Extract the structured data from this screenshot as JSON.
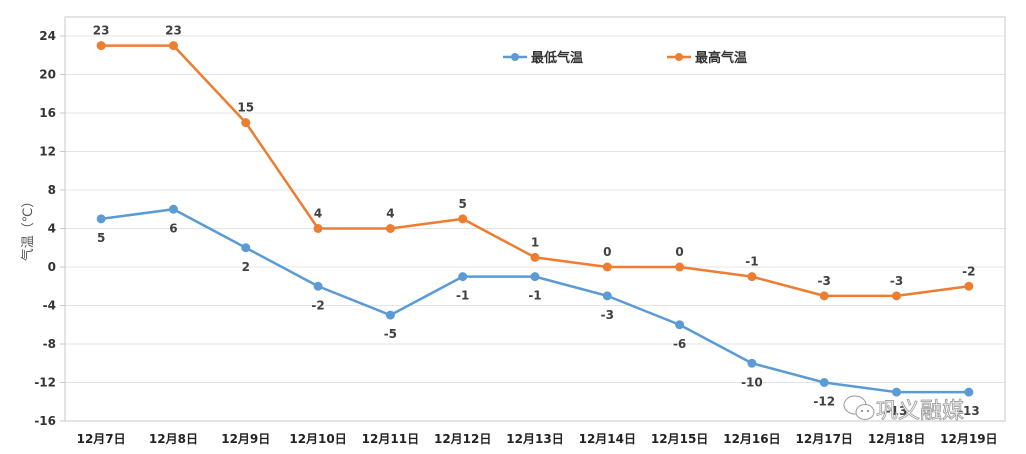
{
  "chart_data": {
    "type": "line",
    "title": "",
    "xlabel": "",
    "ylabel": "气温（℃）",
    "ylim": [
      -16,
      24
    ],
    "yticks": [
      24,
      20,
      16,
      12,
      8,
      4,
      0,
      -4,
      -8,
      -12,
      -16
    ],
    "grid": true,
    "legend_position": "top-right-inside",
    "categories": [
      "12月7日",
      "12月8日",
      "12月9日",
      "12月10日",
      "12月11日",
      "12月12日",
      "12月13日",
      "12月14日",
      "12月15日",
      "12月16日",
      "12月17日",
      "12月18日",
      "12月19日"
    ],
    "series": [
      {
        "name": "最低气温",
        "color": "#5B9BD5",
        "values": [
          5,
          6,
          2,
          -2,
          -5,
          -1,
          -1,
          -3,
          -6,
          -10,
          -12,
          -13,
          -13
        ]
      },
      {
        "name": "最高气温",
        "color": "#ED7D31",
        "values": [
          23,
          23,
          15,
          4,
          4,
          5,
          1,
          0,
          0,
          -1,
          -3,
          -3,
          -2
        ]
      }
    ]
  },
  "watermark": {
    "text": "巩义融媒",
    "icon": "wechat-icon"
  }
}
